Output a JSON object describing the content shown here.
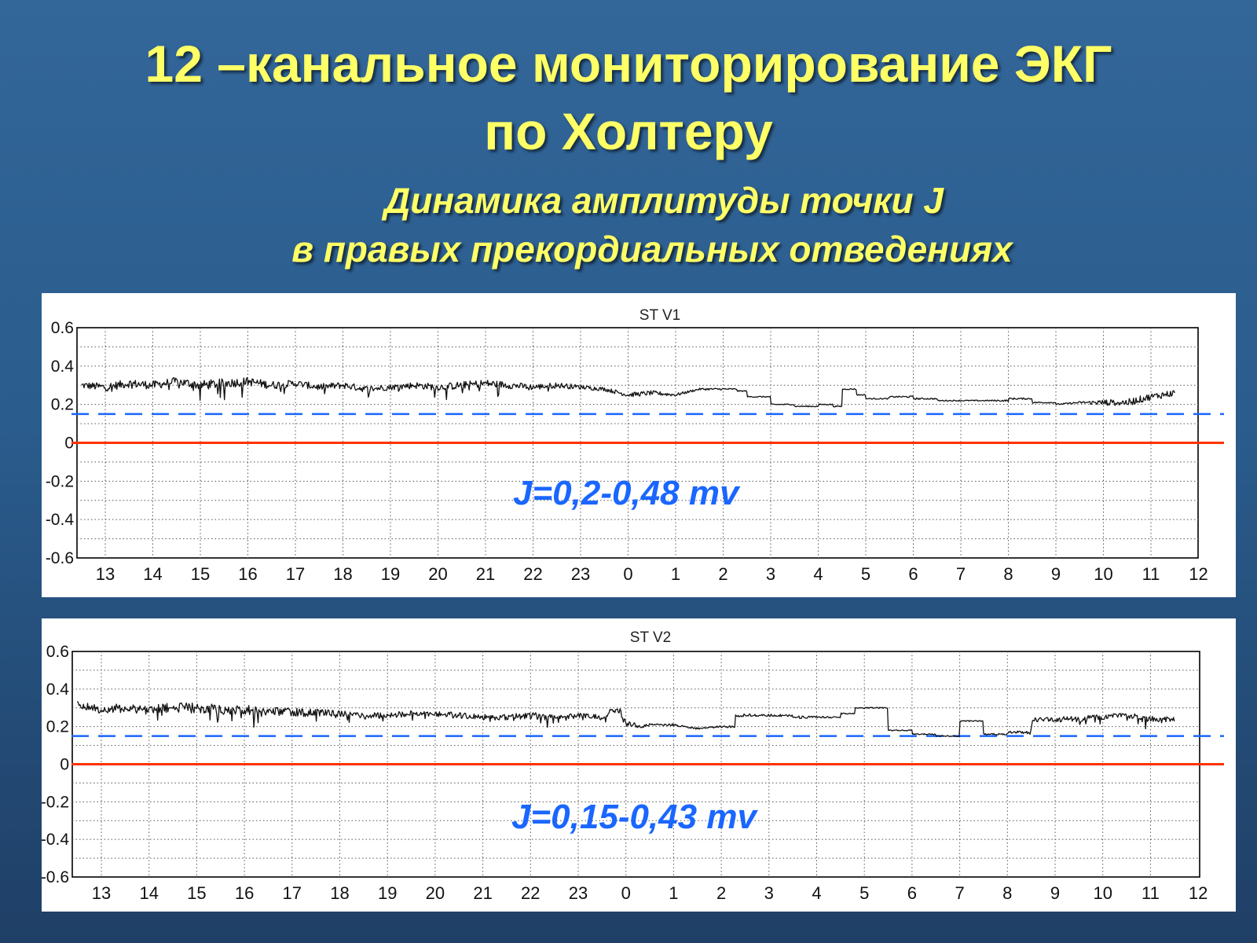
{
  "slide": {
    "title_line1": "12 –канальное мониторирование ЭКГ",
    "title_line2": "по Холтеру",
    "subtitle_line1": "Динамика амплитуды точки J",
    "subtitle_line2": "в правых прекордиальных отведениях"
  },
  "colors": {
    "background": "#2e5f91",
    "title_text": "#ffff66",
    "trace": "#111111",
    "baseline": "#ff3300",
    "threshold": "#1a66ff",
    "annotation": "#1a66ff"
  },
  "chart_data": [
    {
      "type": "line",
      "title": "ST V1",
      "annotation": "J=0,2-0,48 mv",
      "categories": [
        "13",
        "14",
        "15",
        "16",
        "17",
        "18",
        "19",
        "20",
        "21",
        "22",
        "23",
        "0",
        "1",
        "2",
        "3",
        "4",
        "5",
        "6",
        "7",
        "8",
        "9",
        "10",
        "11",
        "12"
      ],
      "ylim": [
        -0.6,
        0.6
      ],
      "yticks": [
        "0.6",
        "0.4",
        "0.2",
        "0",
        "-0.2",
        "-0.4",
        "-0.6"
      ],
      "grid": true,
      "reference_lines": [
        {
          "label": "0",
          "value": 0.0,
          "style": "solid",
          "color": "#ff3300"
        },
        {
          "value": 0.15,
          "style": "dashed",
          "color": "#1a66ff"
        }
      ],
      "series": [
        {
          "x": [
            12.5,
            13,
            13.5,
            14,
            14.5,
            15,
            15.5,
            16,
            16.5,
            17,
            17.5,
            18,
            18.5,
            19,
            19.5,
            20,
            20.5,
            21,
            21.5,
            22,
            22.5,
            23,
            23.5,
            24,
            24.5,
            25,
            25.5,
            26,
            26.3,
            26.5,
            27,
            27.5,
            28,
            28.3,
            28.5,
            28.8,
            29,
            29.5,
            30,
            30.5,
            31,
            31.5,
            32,
            32.5,
            33,
            33.5,
            34,
            34.5,
            35,
            35.5
          ],
          "y": [
            0.3,
            0.29,
            0.31,
            0.3,
            0.32,
            0.3,
            0.31,
            0.32,
            0.3,
            0.31,
            0.29,
            0.3,
            0.28,
            0.29,
            0.3,
            0.29,
            0.3,
            0.31,
            0.3,
            0.29,
            0.3,
            0.29,
            0.28,
            0.25,
            0.26,
            0.25,
            0.28,
            0.28,
            0.27,
            0.24,
            0.2,
            0.19,
            0.2,
            0.19,
            0.28,
            0.25,
            0.23,
            0.24,
            0.23,
            0.22,
            0.22,
            0.22,
            0.23,
            0.21,
            0.2,
            0.21,
            0.21,
            0.21,
            0.24,
            0.26
          ],
          "noise": [
            0.018,
            0.022,
            0.022,
            0.022,
            0.022,
            0.025,
            0.025,
            0.022,
            0.022,
            0.018,
            0.018,
            0.018,
            0.018,
            0.015,
            0.018,
            0.018,
            0.02,
            0.02,
            0.018,
            0.015,
            0.015,
            0.012,
            0.01,
            0.012,
            0.012,
            0.008,
            0.005,
            0.005,
            0.003,
            0.003,
            0.003,
            0.003,
            0.003,
            0.003,
            0.003,
            0.003,
            0.003,
            0.003,
            0.005,
            0.003,
            0.003,
            0.003,
            0.005,
            0.004,
            0.003,
            0.005,
            0.015,
            0.018,
            0.018,
            0.018
          ]
        }
      ]
    },
    {
      "type": "line",
      "title": "ST V2",
      "annotation": "J=0,15-0,43 mv",
      "categories": [
        "13",
        "14",
        "15",
        "16",
        "17",
        "18",
        "19",
        "20",
        "21",
        "22",
        "23",
        "0",
        "1",
        "2",
        "3",
        "4",
        "5",
        "6",
        "7",
        "8",
        "9",
        "10",
        "11",
        "12"
      ],
      "ylim": [
        -0.6,
        0.6
      ],
      "yticks": [
        "0.6",
        "0.4",
        "0.2",
        "0",
        "-0.2",
        "-0.4",
        "-0.6"
      ],
      "grid": true,
      "reference_lines": [
        {
          "label": "0",
          "value": 0.0,
          "style": "solid",
          "color": "#ff3300"
        },
        {
          "value": 0.15,
          "style": "dashed",
          "color": "#1a66ff"
        }
      ],
      "series": [
        {
          "x": [
            12.5,
            13,
            13.5,
            14,
            14.5,
            15,
            15.5,
            16,
            16.5,
            17,
            17.5,
            18,
            18.5,
            19,
            19.5,
            20,
            20.5,
            21,
            21.5,
            22,
            22.5,
            23,
            23.5,
            23.8,
            24,
            24.3,
            24.5,
            25,
            25.5,
            26,
            26.3,
            26.5,
            27,
            27.5,
            28,
            28.5,
            28.8,
            29,
            29.5,
            30,
            30.5,
            30.8,
            31,
            31.5,
            31.8,
            32,
            32.5,
            33,
            33.5,
            34,
            34.5,
            35,
            35.5
          ],
          "y": [
            0.32,
            0.29,
            0.3,
            0.29,
            0.3,
            0.3,
            0.29,
            0.29,
            0.28,
            0.28,
            0.27,
            0.27,
            0.26,
            0.26,
            0.27,
            0.27,
            0.26,
            0.25,
            0.25,
            0.26,
            0.25,
            0.26,
            0.25,
            0.31,
            0.22,
            0.2,
            0.21,
            0.21,
            0.19,
            0.2,
            0.26,
            0.26,
            0.26,
            0.25,
            0.25,
            0.27,
            0.3,
            0.3,
            0.18,
            0.16,
            0.15,
            0.15,
            0.23,
            0.16,
            0.16,
            0.17,
            0.24,
            0.24,
            0.24,
            0.25,
            0.26,
            0.24,
            0.24
          ],
          "noise": [
            0.018,
            0.022,
            0.025,
            0.025,
            0.028,
            0.028,
            0.025,
            0.025,
            0.022,
            0.022,
            0.022,
            0.018,
            0.018,
            0.015,
            0.015,
            0.015,
            0.015,
            0.015,
            0.015,
            0.02,
            0.018,
            0.015,
            0.015,
            0.02,
            0.02,
            0.008,
            0.006,
            0.006,
            0.005,
            0.005,
            0.008,
            0.008,
            0.006,
            0.008,
            0.005,
            0.004,
            0.003,
            0.003,
            0.003,
            0.003,
            0.003,
            0.003,
            0.003,
            0.003,
            0.004,
            0.004,
            0.012,
            0.015,
            0.015,
            0.015,
            0.015,
            0.015,
            0.015
          ]
        }
      ]
    }
  ]
}
